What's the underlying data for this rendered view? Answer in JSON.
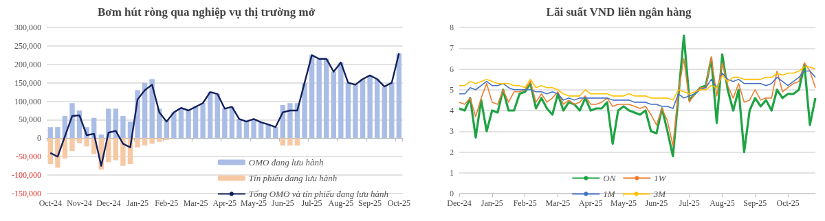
{
  "chart_data": [
    {
      "type": "bar",
      "title": "Bơm hút ròng qua nghiệp vụ thị trường mở",
      "categories": [
        "Oct-24",
        null,
        null,
        null,
        "Nov-24",
        null,
        null,
        null,
        "Dec-24",
        null,
        null,
        null,
        "Jan-25",
        null,
        null,
        null,
        "Feb-25",
        null,
        null,
        null,
        "Mar-25",
        null,
        null,
        null,
        "Apr-25",
        null,
        null,
        null,
        "May-25",
        null,
        null,
        null,
        "Jun-25",
        null,
        null,
        null,
        "Jul-25",
        null,
        null,
        null,
        "Aug-25",
        null,
        null,
        null,
        "Sep-25",
        null,
        null,
        null,
        "Oct-25"
      ],
      "series": [
        {
          "name": "OMO đang lưu hành",
          "color": "#aabde6",
          "values": [
            30000,
            30000,
            60000,
            95000,
            75000,
            30000,
            55000,
            10000,
            80000,
            80000,
            60000,
            45000,
            130000,
            150000,
            160000,
            80000,
            50000,
            70000,
            82000,
            75000,
            85000,
            95000,
            125000,
            120000,
            80000,
            85000,
            52000,
            45000,
            52000,
            43000,
            37000,
            30000,
            90000,
            95000,
            95000,
            150000,
            225000,
            215000,
            215000,
            180000,
            205000,
            150000,
            145000,
            160000,
            170000,
            160000,
            140000,
            150000,
            230000
          ]
        },
        {
          "name": "Tín phiếu đang lưu hành",
          "color": "#f6c9a4",
          "values": [
            -70000,
            -80000,
            -55000,
            -35000,
            -13000,
            -22000,
            -43000,
            -85000,
            -65000,
            -60000,
            -75000,
            -70000,
            -25000,
            -20000,
            -15000,
            -10000,
            -5000,
            0,
            0,
            0,
            0,
            0,
            0,
            0,
            0,
            0,
            0,
            0,
            0,
            0,
            0,
            0,
            -20000,
            -20000,
            -20000,
            0,
            0,
            0,
            0,
            0,
            0,
            0,
            0,
            0,
            0,
            0,
            0,
            0,
            0
          ]
        },
        {
          "name": "Tổng OMO và tín phiếu đang lưu hành",
          "type": "line",
          "color": "#14215c",
          "values": [
            -40000,
            -50000,
            5000,
            60000,
            62000,
            8000,
            12000,
            -75000,
            15000,
            20000,
            -15000,
            -25000,
            105000,
            130000,
            145000,
            70000,
            45000,
            70000,
            82000,
            75000,
            85000,
            95000,
            125000,
            120000,
            80000,
            85000,
            52000,
            45000,
            52000,
            43000,
            37000,
            30000,
            70000,
            75000,
            75000,
            150000,
            225000,
            215000,
            215000,
            180000,
            205000,
            150000,
            145000,
            160000,
            170000,
            160000,
            140000,
            150000,
            230000
          ]
        }
      ],
      "ylim": [
        -150000,
        300000
      ],
      "yticks": [
        {
          "value": -150000,
          "label": "-150,000"
        },
        {
          "value": -100000,
          "label": "-100,000"
        },
        {
          "value": -50000,
          "label": "-50,000"
        },
        0,
        {
          "value": 50000,
          "label": "50,000"
        },
        {
          "value": 100000,
          "label": "100,000"
        },
        {
          "value": 150000,
          "label": "150,000"
        },
        {
          "value": 200000,
          "label": "200,000"
        },
        {
          "value": 250000,
          "label": "250,000"
        },
        {
          "value": 300000,
          "label": "300,000"
        }
      ],
      "grid": "y",
      "legend": "bottom right",
      "marker": "none"
    },
    {
      "type": "line",
      "title": "Lãi suất VND liên ngân hàng",
      "categories": [
        "Dec-24",
        null,
        null,
        null,
        null,
        null,
        "Jan-25",
        null,
        null,
        null,
        null,
        null,
        "Feb-25",
        null,
        null,
        null,
        null,
        null,
        "Mar-25",
        null,
        null,
        null,
        null,
        null,
        "Apr-25",
        null,
        null,
        null,
        null,
        null,
        "May-25",
        null,
        null,
        null,
        null,
        null,
        "Jun-25",
        null,
        null,
        null,
        null,
        null,
        "Jul-25",
        null,
        null,
        null,
        null,
        null,
        "Aug-25",
        null,
        null,
        null,
        null,
        null,
        "Sep-25",
        null,
        null,
        null,
        null,
        null,
        "Oct-25",
        null,
        null,
        null,
        null,
        null
      ],
      "series": [
        {
          "name": "ON",
          "color": "#1fa344",
          "values": [
            4.1,
            4.0,
            4.6,
            2.7,
            4.5,
            3.0,
            4.0,
            3.9,
            5.0,
            4.0,
            4.0,
            4.8,
            4.9,
            5.3,
            4.1,
            4.6,
            4.1,
            3.8,
            4.8,
            4.0,
            4.4,
            4.3,
            4.0,
            4.6,
            4.0,
            4.1,
            4.1,
            4.4,
            2.4,
            4.0,
            4.2,
            4.0,
            3.9,
            3.8,
            4.0,
            3.0,
            2.9,
            4.1,
            3.0,
            1.8,
            4.7,
            7.6,
            4.5,
            4.8,
            5.1,
            5.2,
            6.5,
            3.4,
            6.7,
            5.0,
            4.0,
            5.0,
            2.0,
            4.0,
            4.6,
            4.2,
            4.5,
            4.0,
            5.0,
            4.6,
            4.8,
            4.8,
            5.0,
            6.2,
            3.3,
            4.6
          ]
        },
        {
          "name": "1W",
          "color": "#ed7d31",
          "values": [
            4.4,
            4.3,
            4.6,
            3.7,
            4.6,
            5.3,
            4.4,
            4.3,
            5.0,
            4.4,
            4.9,
            4.9,
            5.0,
            5.4,
            4.4,
            4.8,
            4.4,
            4.6,
            4.9,
            4.3,
            4.5,
            4.3,
            4.4,
            4.7,
            4.3,
            4.3,
            4.4,
            4.6,
            4.2,
            4.3,
            4.3,
            4.3,
            4.2,
            4.1,
            4.2,
            3.8,
            3.3,
            4.1,
            3.5,
            2.3,
            4.9,
            6.5,
            4.4,
            4.8,
            5.1,
            5.1,
            6.6,
            4.7,
            6.3,
            5.2,
            4.6,
            5.3,
            4.4,
            4.5,
            5.0,
            4.5,
            4.6,
            4.6,
            5.9,
            4.9,
            5.1,
            5.3,
            5.4,
            6.3,
            5.9,
            5.1
          ]
        },
        {
          "name": "1M",
          "color": "#4472c4",
          "values": [
            4.8,
            4.8,
            5.1,
            5.0,
            5.2,
            5.4,
            5.2,
            5.2,
            5.3,
            5.1,
            5.0,
            5.0,
            5.0,
            5.0,
            4.9,
            4.9,
            4.8,
            4.9,
            4.8,
            4.5,
            4.6,
            4.5,
            4.6,
            4.6,
            4.6,
            4.6,
            4.6,
            4.6,
            4.5,
            4.5,
            4.5,
            4.5,
            4.4,
            4.4,
            4.4,
            4.3,
            4.3,
            4.2,
            4.2,
            4.1,
            4.8,
            4.6,
            4.7,
            4.8,
            5.0,
            5.1,
            5.5,
            5.1,
            5.8,
            5.5,
            5.4,
            5.5,
            5.3,
            5.3,
            5.3,
            5.3,
            5.2,
            5.3,
            5.6,
            5.4,
            5.2,
            5.4,
            5.6,
            5.9,
            5.9,
            5.6
          ]
        },
        {
          "name": "3M",
          "color": "#ffc000",
          "values": [
            5.2,
            5.2,
            5.4,
            5.3,
            5.4,
            5.5,
            5.4,
            5.3,
            5.3,
            5.3,
            5.2,
            5.2,
            5.1,
            5.5,
            5.1,
            5.2,
            5.1,
            5.1,
            5.0,
            4.8,
            4.7,
            4.7,
            4.7,
            5.0,
            4.8,
            4.8,
            4.8,
            4.8,
            4.7,
            4.7,
            4.7,
            4.8,
            4.7,
            4.7,
            4.7,
            4.6,
            4.6,
            4.6,
            4.6,
            4.5,
            5.0,
            4.9,
            4.8,
            4.9,
            5.0,
            5.0,
            5.2,
            5.1,
            5.7,
            5.4,
            5.6,
            5.6,
            5.5,
            5.5,
            5.5,
            5.5,
            5.6,
            5.6,
            5.8,
            5.7,
            5.8,
            5.8,
            5.9,
            6.1,
            6.1,
            6.0
          ]
        }
      ],
      "ylim": [
        0,
        8
      ],
      "yticks": [
        0,
        1,
        2,
        3,
        4,
        5,
        6,
        7,
        8
      ],
      "grid": "y",
      "legend": "bottom",
      "marker": "none"
    }
  ]
}
